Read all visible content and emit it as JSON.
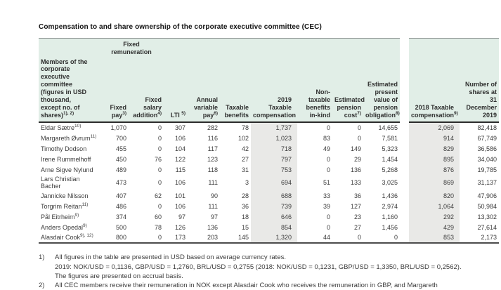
{
  "title": "Compensation to and share ownership of the corporate executive committee (CEC)",
  "table": {
    "group_header": "Fixed\nremuneration",
    "columns": [
      {
        "label": "Members of the\ncorporate\nexecutive committee\n(figures in USD\nthousand,\nexcept no. of shares)",
        "sup": "1), 2)",
        "key": "members"
      },
      {
        "label": "Fixed\npay",
        "sup": "3)",
        "key": "fixed-pay"
      },
      {
        "label": "Fixed\nsalary\naddition",
        "sup": "4)",
        "key": "fixed-salary-addition"
      },
      {
        "label": "LTI ",
        "sup": "5)",
        "key": "lti"
      },
      {
        "label": "Annual\nvariable\npay",
        "sup": "6)",
        "key": "annual-variable-pay"
      },
      {
        "label": "Taxable\nbenefits",
        "sup": "",
        "key": "taxable-benefits"
      },
      {
        "label": "2019 Taxable\ncompensation",
        "sup": "",
        "key": "taxable-compensation-2019"
      },
      {
        "label": "Non-\ntaxable\nbenefits\nin-kind",
        "sup": "",
        "key": "non-taxable-benefits-in-kind"
      },
      {
        "label": "Estimated\npension\ncost",
        "sup": "7)",
        "key": "estimated-pension-cost"
      },
      {
        "label": "Estimated\npresent\nvalue of\npension\nobligation",
        "sup": "8)",
        "key": "estimated-present-value-pension-obligation"
      },
      {
        "label": "2018 Taxable\ncompensation",
        "sup": "9)",
        "key": "taxable-compensation-2018"
      },
      {
        "label": "Number of\nshares at\n31\nDecember\n2019",
        "sup": "",
        "key": "number-of-shares"
      }
    ],
    "rows": [
      {
        "name": "Eldar Sætre",
        "sup": "10)",
        "values": [
          "1,070",
          "0",
          "307",
          "282",
          "78",
          "1,737",
          "0",
          "0",
          "14,655",
          "2,069",
          "82,418"
        ]
      },
      {
        "name": "Margareth Øvrum",
        "sup": "11)",
        "values": [
          "700",
          "0",
          "106",
          "116",
          "102",
          "1,023",
          "83",
          "0",
          "7,581",
          "914",
          "67,749"
        ]
      },
      {
        "name": "Timothy Dodson",
        "sup": "",
        "values": [
          "455",
          "0",
          "104",
          "117",
          "42",
          "718",
          "49",
          "149",
          "5,323",
          "829",
          "36,586"
        ]
      },
      {
        "name": "Irene Rummelhoff",
        "sup": "",
        "values": [
          "450",
          "76",
          "122",
          "123",
          "27",
          "797",
          "0",
          "29",
          "1,454",
          "895",
          "34,040"
        ]
      },
      {
        "name": "Arne Sigve Nylund",
        "sup": "",
        "values": [
          "489",
          "0",
          "115",
          "118",
          "31",
          "753",
          "0",
          "136",
          "5,268",
          "876",
          "19,785"
        ]
      },
      {
        "name": "Lars Christian Bacher",
        "sup": "",
        "values": [
          "473",
          "0",
          "106",
          "111",
          "3",
          "694",
          "51",
          "133",
          "3,025",
          "869",
          "31,137"
        ]
      },
      {
        "name": "Jannicke Nilsson",
        "sup": "",
        "values": [
          "407",
          "62",
          "101",
          "90",
          "28",
          "688",
          "33",
          "36",
          "1,436",
          "820",
          "47,906"
        ]
      },
      {
        "name": "Torgrim Reitan",
        "sup": "11)",
        "values": [
          "486",
          "0",
          "106",
          "111",
          "36",
          "739",
          "39",
          "127",
          "2,974",
          "1,064",
          "50,984"
        ]
      },
      {
        "name": "Pål Eitrheim",
        "sup": "9)",
        "values": [
          "374",
          "60",
          "97",
          "97",
          "18",
          "646",
          "0",
          "23",
          "1,160",
          "292",
          "13,302"
        ]
      },
      {
        "name": "Anders Opedal",
        "sup": "9)",
        "values": [
          "500",
          "78",
          "126",
          "136",
          "15",
          "854",
          "0",
          "27",
          "1,456",
          "429",
          "27,614"
        ]
      },
      {
        "name": "Alasdair Cook",
        "sup": "9), 12)",
        "values": [
          "800",
          "0",
          "173",
          "203",
          "145",
          "1,320",
          "44",
          "0",
          "0",
          "853",
          "2,173"
        ]
      }
    ]
  },
  "footnotes": [
    {
      "num": "1)",
      "lines": [
        "All figures in the table are presented in USD based on average currency rates.",
        "2019: NOK/USD = 0,1136, GBP/USD = 1,2760, BRL/USD = 0,2755 (2018: NOK/USD = 0,1231, GBP/USD = 1,3350, BRL/USD = 0,2562).",
        "The figures are presented on accrual basis."
      ]
    },
    {
      "num": "2)",
      "lines": [
        "All CEC members receive their remuneration in NOK except Alasdair Cook who receives the remuneration in GBP, and Margareth"
      ]
    }
  ],
  "colors": {
    "header_green": "#e1eee7",
    "stripe_gray": "#e9e9e7",
    "text": "#3c3c3c",
    "border_dark": "#2b2b2b",
    "border_bottom": "#4c4c4c",
    "border_top": "#8f9695"
  }
}
